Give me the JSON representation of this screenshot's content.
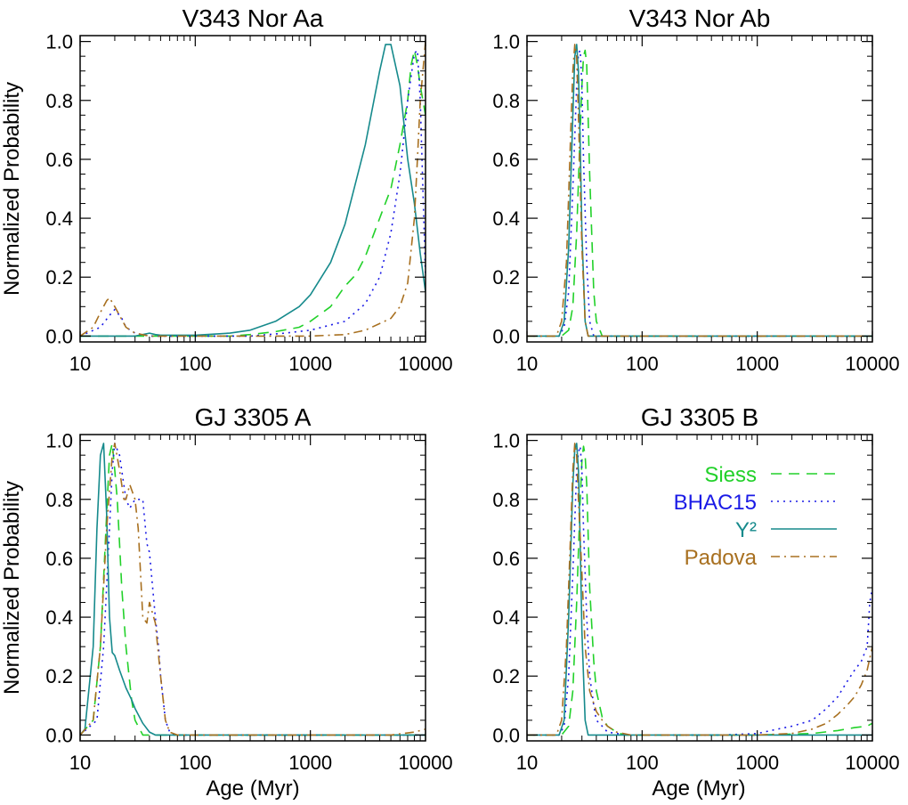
{
  "figure": {
    "ylabel": "Normalized Probability",
    "xlabel": "Age (Myr)"
  },
  "legend": {
    "placement": "right, inside lower-right panel",
    "entries": [
      {
        "label": "Siess",
        "color": "#22d12a",
        "dash": "dashed"
      },
      {
        "label": "BHAC15",
        "color": "#1a1ae6",
        "dash": "dotted"
      },
      {
        "label": "Y²",
        "color": "#168a8c",
        "dash": "solid"
      },
      {
        "label": "Padova",
        "color": "#a87020",
        "dash": "dashdot"
      }
    ]
  },
  "chart_data": [
    {
      "type": "line",
      "title": "V343 Nor Aa",
      "xscale": "log",
      "xlim": [
        10,
        10000
      ],
      "ylim": [
        -0.02,
        1.02
      ],
      "xticks": [
        "10",
        "100",
        "1000",
        "10000"
      ],
      "yticks": [
        "0.0",
        "0.2",
        "0.4",
        "0.6",
        "0.8",
        "1.0"
      ],
      "series": [
        {
          "name": "Siess",
          "x": [
            10,
            15,
            20,
            30,
            50,
            100,
            200,
            300,
            500,
            800,
            1000,
            1500,
            2000,
            2500,
            3000,
            4000,
            5000,
            6000,
            7000,
            7500,
            8000,
            8500,
            9000,
            10000
          ],
          "y": [
            0,
            0,
            0,
            0,
            0,
            0,
            0,
            0.005,
            0.015,
            0.03,
            0.05,
            0.1,
            0.17,
            0.21,
            0.27,
            0.4,
            0.5,
            0.65,
            0.8,
            0.92,
            0.97,
            0.92,
            0.85,
            0.75
          ]
        },
        {
          "name": "BHAC15",
          "x": [
            10,
            15,
            18,
            20,
            23,
            25,
            30,
            40,
            50,
            100,
            300,
            600,
            1000,
            2000,
            3000,
            4000,
            5000,
            6000,
            7000,
            8000,
            8500,
            9000,
            10000
          ],
          "y": [
            0,
            0.03,
            0.07,
            0.09,
            0.06,
            0.03,
            0.01,
            0,
            0,
            0,
            0,
            0.01,
            0.02,
            0.05,
            0.11,
            0.2,
            0.35,
            0.55,
            0.8,
            0.96,
            0.97,
            0.8,
            0.2
          ]
        },
        {
          "name": "Y²",
          "x": [
            10,
            30,
            35,
            40,
            45,
            50,
            100,
            200,
            300,
            500,
            800,
            1000,
            1500,
            2000,
            3000,
            4000,
            4500,
            5000,
            6000,
            7000,
            8000,
            9000,
            10000
          ],
          "y": [
            0,
            0,
            0.005,
            0.01,
            0.005,
            0.003,
            0.003,
            0.01,
            0.02,
            0.05,
            0.1,
            0.14,
            0.25,
            0.38,
            0.65,
            0.9,
            0.99,
            0.99,
            0.85,
            0.6,
            0.45,
            0.28,
            0.15
          ]
        },
        {
          "name": "Padova",
          "x": [
            10,
            13,
            15,
            17,
            18,
            20,
            25,
            30,
            40,
            100,
            500,
            1000,
            2000,
            3000,
            5000,
            6000,
            7000,
            8000,
            8500,
            9000,
            9500,
            10000
          ],
          "y": [
            0,
            0.03,
            0.08,
            0.12,
            0.13,
            0.1,
            0.03,
            0.01,
            0,
            0,
            0,
            0,
            0.005,
            0.02,
            0.06,
            0.1,
            0.18,
            0.4,
            0.6,
            0.8,
            0.9,
            1.0
          ]
        }
      ]
    },
    {
      "type": "line",
      "title": "V343 Nor Ab",
      "xscale": "log",
      "xlim": [
        10,
        10000
      ],
      "ylim": [
        -0.02,
        1.02
      ],
      "xticks": [
        "10",
        "100",
        "1000",
        "10000"
      ],
      "yticks": [
        "0.0",
        "0.2",
        "0.4",
        "0.6",
        "0.8",
        "1.0"
      ],
      "series": [
        {
          "name": "Siess",
          "x": [
            10,
            20,
            23,
            25,
            27,
            29,
            30,
            31,
            32,
            33,
            35,
            38,
            40,
            45,
            10000
          ],
          "y": [
            0,
            0,
            0.02,
            0.1,
            0.35,
            0.7,
            0.85,
            0.95,
            0.97,
            0.92,
            0.55,
            0.15,
            0.05,
            0,
            0
          ]
        },
        {
          "name": "BHAC15",
          "x": [
            10,
            19,
            21,
            23,
            25,
            27,
            28,
            29,
            30,
            31,
            33,
            35,
            38,
            10000
          ],
          "y": [
            0,
            0,
            0.03,
            0.15,
            0.5,
            0.85,
            0.96,
            0.97,
            0.85,
            0.6,
            0.25,
            0.05,
            0,
            0
          ]
        },
        {
          "name": "Y²",
          "x": [
            10,
            19,
            21,
            23,
            25,
            26,
            27,
            28,
            29,
            30,
            32,
            34,
            10000
          ],
          "y": [
            0,
            0,
            0.05,
            0.3,
            0.75,
            0.95,
            0.99,
            0.9,
            0.65,
            0.35,
            0.05,
            0,
            0
          ]
        },
        {
          "name": "Padova",
          "x": [
            10,
            18,
            20,
            22,
            24,
            25,
            26,
            27,
            28,
            30,
            32,
            34,
            10000
          ],
          "y": [
            0,
            0,
            0.05,
            0.25,
            0.7,
            0.9,
            0.99,
            0.95,
            0.75,
            0.3,
            0.05,
            0,
            0
          ]
        }
      ]
    },
    {
      "type": "line",
      "title": "GJ 3305 A",
      "xscale": "log",
      "xlim": [
        10,
        10000
      ],
      "ylim": [
        -0.02,
        1.02
      ],
      "xticks": [
        "10",
        "100",
        "1000",
        "10000"
      ],
      "yticks": [
        "0.0",
        "0.2",
        "0.4",
        "0.6",
        "0.8",
        "1.0"
      ],
      "series": [
        {
          "name": "Siess",
          "x": [
            10,
            13,
            15,
            17,
            18,
            19,
            20,
            21,
            22,
            23,
            25,
            28,
            30,
            35,
            10000
          ],
          "y": [
            0,
            0.05,
            0.3,
            0.75,
            0.95,
            0.99,
            0.9,
            0.8,
            0.65,
            0.5,
            0.3,
            0.12,
            0.05,
            0,
            0
          ]
        },
        {
          "name": "BHAC15",
          "x": [
            10,
            14,
            16,
            18,
            19,
            20,
            22,
            25,
            27,
            30,
            32,
            35,
            38,
            40,
            45,
            48,
            50,
            55,
            60,
            65,
            100,
            10000
          ],
          "y": [
            0,
            0.05,
            0.3,
            0.7,
            0.9,
            0.99,
            0.95,
            0.8,
            0.77,
            0.8,
            0.8,
            0.8,
            0.65,
            0.62,
            0.4,
            0.3,
            0.2,
            0.05,
            0.01,
            0,
            0,
            0
          ]
        },
        {
          "name": "Y²",
          "x": [
            10,
            11,
            13,
            14,
            15,
            16,
            17,
            18,
            19,
            20,
            22,
            25,
            28,
            30,
            35,
            40,
            45,
            50,
            10000
          ],
          "y": [
            0,
            0.02,
            0.3,
            0.7,
            0.95,
            0.99,
            0.75,
            0.4,
            0.28,
            0.27,
            0.22,
            0.16,
            0.12,
            0.09,
            0.04,
            0.01,
            0,
            0,
            0
          ]
        },
        {
          "name": "Padova",
          "x": [
            10,
            13,
            15,
            17,
            19,
            20,
            22,
            24,
            25,
            27,
            30,
            32,
            35,
            38,
            40,
            45,
            50,
            55,
            60,
            70,
            100,
            5000,
            8000,
            10000
          ],
          "y": [
            0,
            0.05,
            0.3,
            0.7,
            0.95,
            0.99,
            0.9,
            0.8,
            0.8,
            0.85,
            0.8,
            0.7,
            0.4,
            0.38,
            0.45,
            0.38,
            0.2,
            0.05,
            0.01,
            0,
            0,
            0,
            0.01,
            0.02
          ]
        }
      ]
    },
    {
      "type": "line",
      "title": "GJ 3305 B",
      "xscale": "log",
      "xlim": [
        10,
        10000
      ],
      "ylim": [
        -0.02,
        1.02
      ],
      "xticks": [
        "10",
        "100",
        "1000",
        "10000"
      ],
      "yticks": [
        "0.0",
        "0.2",
        "0.4",
        "0.6",
        "0.8",
        "1.0"
      ],
      "series": [
        {
          "name": "Siess",
          "x": [
            10,
            20,
            23,
            25,
            27,
            29,
            30,
            31,
            32,
            33,
            35,
            38,
            40,
            45,
            50,
            60,
            70,
            100,
            1000,
            3000,
            5000,
            7000,
            9000,
            10000
          ],
          "y": [
            0,
            0,
            0.03,
            0.15,
            0.45,
            0.8,
            0.93,
            0.98,
            0.95,
            0.85,
            0.5,
            0.25,
            0.15,
            0.06,
            0.03,
            0.01,
            0,
            0,
            0,
            0.005,
            0.015,
            0.025,
            0.03,
            0.04
          ]
        },
        {
          "name": "BHAC15",
          "x": [
            10,
            19,
            21,
            23,
            25,
            27,
            28,
            29,
            30,
            31,
            33,
            35,
            38,
            40,
            45,
            50,
            60,
            80,
            100,
            200,
            500,
            1000,
            1500,
            2000,
            3000,
            4000,
            5000,
            6000,
            7000,
            8000,
            9000,
            9500,
            10000
          ],
          "y": [
            0,
            0,
            0.03,
            0.2,
            0.55,
            0.9,
            0.96,
            0.98,
            0.9,
            0.7,
            0.4,
            0.2,
            0.1,
            0.05,
            0.03,
            0.01,
            0.005,
            0,
            0,
            0,
            0,
            0.005,
            0.02,
            0.03,
            0.05,
            0.09,
            0.13,
            0.18,
            0.22,
            0.25,
            0.3,
            0.45,
            0.5
          ]
        },
        {
          "name": "Y²",
          "x": [
            10,
            19,
            21,
            23,
            25,
            26,
            27,
            28,
            29,
            30,
            32,
            34,
            10000
          ],
          "y": [
            0,
            0,
            0.05,
            0.4,
            0.85,
            0.97,
            0.99,
            0.9,
            0.65,
            0.35,
            0.05,
            0,
            0
          ]
        },
        {
          "name": "Padova",
          "x": [
            10,
            18,
            20,
            22,
            24,
            25,
            26,
            27,
            28,
            30,
            32,
            35,
            40,
            45,
            50,
            60,
            80,
            100,
            1000,
            2000,
            3000,
            4000,
            5000,
            6000,
            7000,
            8000,
            9000,
            10000
          ],
          "y": [
            0,
            0,
            0.05,
            0.3,
            0.7,
            0.9,
            0.99,
            0.95,
            0.8,
            0.55,
            0.3,
            0.15,
            0.08,
            0.05,
            0.03,
            0.01,
            0,
            0,
            0,
            0.005,
            0.02,
            0.04,
            0.07,
            0.1,
            0.13,
            0.17,
            0.22,
            0.3
          ]
        }
      ]
    }
  ]
}
